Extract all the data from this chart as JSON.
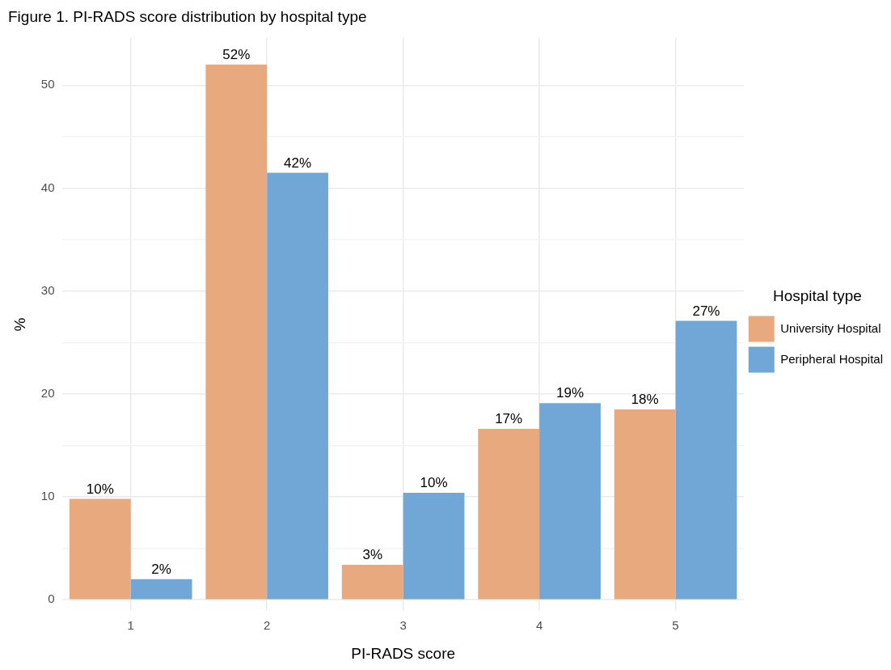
{
  "chart_data": {
    "type": "bar",
    "title": "Figure 1. PI-RADS score distribution by hospital type",
    "xlabel": "PI-RADS score",
    "ylabel": "%",
    "legend_title": "Hospital type",
    "categories": [
      "1",
      "2",
      "3",
      "4",
      "5"
    ],
    "series": [
      {
        "name": "University Hospital",
        "color": "#e8a97e",
        "values": [
          9.8,
          52.0,
          3.4,
          16.6,
          18.5
        ],
        "value_labels": [
          "10%",
          "52%",
          "3%",
          "17%",
          "18%"
        ]
      },
      {
        "name": "Peripheral Hospital",
        "color": "#70a7d6",
        "values": [
          2.0,
          41.5,
          10.4,
          19.1,
          27.1
        ],
        "value_labels": [
          "2%",
          "42%",
          "10%",
          "19%",
          "27%"
        ]
      }
    ],
    "ylim": [
      -1.1,
      54.6
    ],
    "yticks": [
      0,
      {
        "value": 5,
        "label": null
      },
      10,
      {
        "value": 15,
        "label": null
      },
      20,
      {
        "value": 25,
        "label": null
      },
      30,
      {
        "value": 35,
        "label": null
      },
      40,
      {
        "value": 45,
        "label": null
      },
      50
    ],
    "grid": true,
    "legend": "right"
  }
}
